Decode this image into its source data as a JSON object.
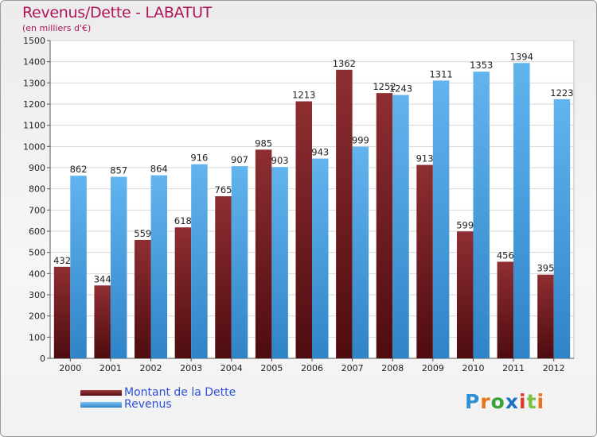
{
  "header": {
    "title": "Revenus/Dette - LABATUT",
    "subtitle": "(en milliers d'€)"
  },
  "chart_data": {
    "type": "bar",
    "categories": [
      "2000",
      "2001",
      "2002",
      "2003",
      "2004",
      "2005",
      "2006",
      "2007",
      "2008",
      "2009",
      "2010",
      "2011",
      "2012"
    ],
    "series": [
      {
        "name": "Montant de la Dette",
        "color": "#7a1a1e",
        "values": [
          432,
          344,
          559,
          618,
          765,
          985,
          1213,
          1362,
          1252,
          913,
          599,
          456,
          395
        ]
      },
      {
        "name": "Revenus",
        "color": "#4aa3e6",
        "values": [
          862,
          857,
          864,
          916,
          907,
          903,
          943,
          999,
          1243,
          1311,
          1353,
          1394,
          1223
        ]
      }
    ],
    "value_labels": {
      "dette": [
        "432",
        "344",
        "559",
        "618",
        "765",
        "985",
        "1213",
        "1362",
        "1252",
        "913",
        "599",
        "456",
        "395"
      ],
      "revenus": [
        "862",
        "857",
        "864",
        "916",
        "907",
        "903",
        "943",
        "999",
        "1243",
        "1311",
        "1353",
        "1394",
        "1223"
      ]
    },
    "yticks": [
      "0",
      "100",
      "200",
      "300",
      "400",
      "500",
      "600",
      "700",
      "800",
      "900",
      "1000",
      "1100",
      "1200",
      "1300",
      "1400",
      "1500"
    ],
    "ylim": [
      0,
      1500
    ],
    "grid": true,
    "legend_position": "bottom-left"
  },
  "legend": {
    "dette_label": "Montant de la Dette",
    "revenus_label": "Revenus"
  },
  "brand": {
    "letters": [
      "P",
      "r",
      "o",
      "x",
      "i",
      "t",
      "i"
    ],
    "colors": [
      "#2e8fd6",
      "#e8731a",
      "#3aa23c",
      "#1f6fc2",
      "#d93d2a",
      "#7cc142",
      "#e8731a"
    ]
  }
}
